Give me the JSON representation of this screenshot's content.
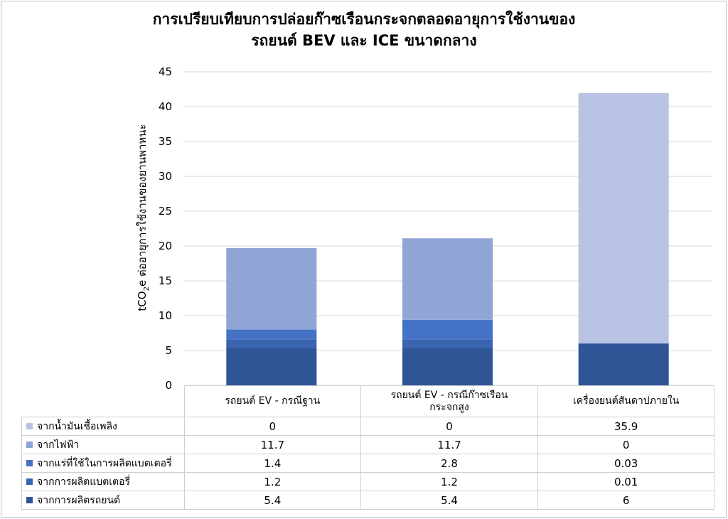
{
  "title_line1": "การเปรียบเทียบการปล่อยก๊าซเรือนกระจกตลอดอายุการใช้งานของ",
  "title_line2": "รถยนต์ BEV และ ICE ขนาดกลาง",
  "chart_data": {
    "type": "bar",
    "stacked": true,
    "ylabel_main": "tCO",
    "ylabel_sub": "2",
    "ylabel_rest": "e ต่ออายุการใช้งานของยานพาหนะ",
    "ylim": [
      0,
      45
    ],
    "yticks": [
      0,
      5,
      10,
      15,
      20,
      25,
      30,
      35,
      40,
      45
    ],
    "grid": true,
    "legend": "data-table",
    "categories": [
      "รถยนต์ EV - กรณีฐาน",
      "รถยนต์ EV - กรณีก๊าซเรือนกระจกสูง",
      "เครื่องยนต์สันดาปภายใน"
    ],
    "category_lines": [
      [
        "รถยนต์ EV - กรณีฐาน"
      ],
      [
        "รถยนต์ EV - กรณีก๊าซเรือน",
        "กระจกสูง"
      ],
      [
        "เครื่องยนต์สันดาปภายใน"
      ]
    ],
    "series": [
      {
        "name": "จากการผลิตรถยนต์",
        "color": "#2f5597",
        "values": [
          5.4,
          5.4,
          6
        ],
        "labels": [
          "5.4",
          "5.4",
          "6"
        ]
      },
      {
        "name": "จากการผลิตแบตเตอรี่",
        "color": "#3a64b0",
        "values": [
          1.2,
          1.2,
          0.01
        ],
        "labels": [
          "1.2",
          "1.2",
          "0.01"
        ]
      },
      {
        "name": "จากแร่ที่ใช้ในการผลิตแบตเตอรี่",
        "color": "#4472c4",
        "values": [
          1.4,
          2.8,
          0.03
        ],
        "labels": [
          "1.4",
          "2.8",
          "0.03"
        ]
      },
      {
        "name": "จากไฟฟ้า",
        "color": "#8fa5d6",
        "values": [
          11.7,
          11.7,
          0
        ],
        "labels": [
          "11.7",
          "11.7",
          "0"
        ]
      },
      {
        "name": "จากน้ำมันเชื้อเพลิง",
        "color": "#b8c3e3",
        "values": [
          0,
          0,
          35.9
        ],
        "labels": [
          "0",
          "0",
          "35.9"
        ]
      }
    ]
  }
}
